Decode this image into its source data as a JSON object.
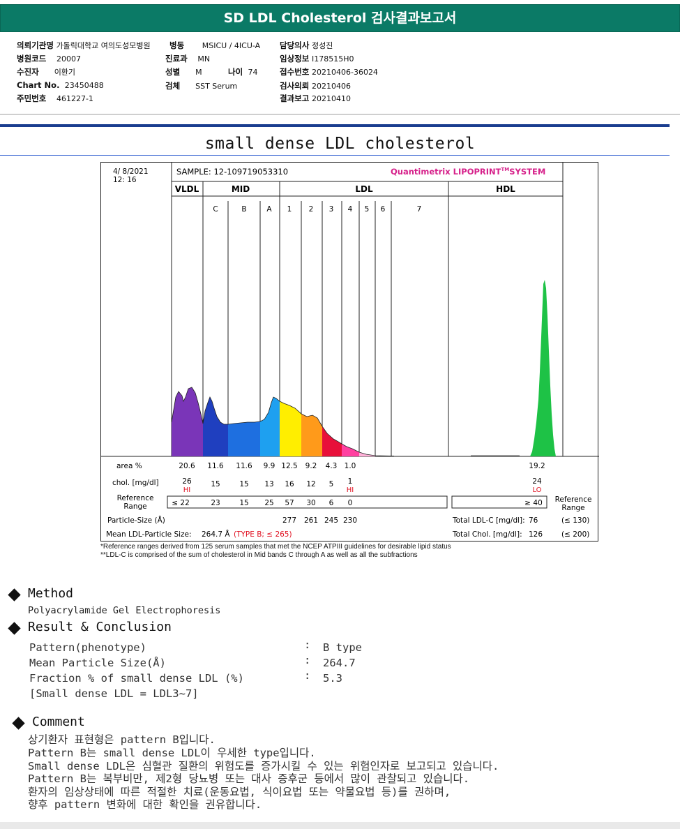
{
  "header": {
    "title": "SD LDL Cholesterol 검사결과보고서"
  },
  "info": {
    "col1": [
      {
        "label": "의뢰기관명",
        "value": "가톨릭대학교 여의도성모병원"
      },
      {
        "label": "병원코드",
        "value": "20007"
      },
      {
        "label": "수진자",
        "value": "이환기"
      },
      {
        "label": "Chart No.",
        "value": "23450488"
      },
      {
        "label": "주민번호",
        "value": "461227-1"
      }
    ],
    "col2": [
      {
        "label": "병동",
        "value": "MSICU / 4ICU-A"
      },
      {
        "label": "진료과",
        "value": "MN"
      },
      {
        "label": "성별",
        "value": "M"
      },
      {
        "label": "검체",
        "value": "SST Serum"
      }
    ],
    "age": {
      "label": "나이",
      "value": "74"
    },
    "col3": [
      {
        "label": "담당의사",
        "value": "정성진"
      },
      {
        "label": "임상정보",
        "value": "I178515H0"
      },
      {
        "label": "접수번호",
        "value": "20210406-36024"
      },
      {
        "label": "검사의뢰",
        "value": "20210406"
      },
      {
        "label": "결과보고",
        "value": "20210410"
      }
    ]
  },
  "report_title": "small dense LDL cholesterol",
  "chart": {
    "date": "4/  8/2021",
    "time": "12: 16",
    "sample": "SAMPLE:   12-109719053310",
    "brand": "Quantimetrix LIPOPRINT",
    "brand_tm": "TM",
    "brand_tail": "SYSTEM",
    "groups": [
      "VLDL",
      "MID",
      "LDL",
      "HDL"
    ],
    "subbands": [
      "C",
      "B",
      "A",
      "1",
      "2",
      "3",
      "4",
      "5",
      "6",
      "7"
    ],
    "row_labels": {
      "area": "area %",
      "chol": "chol. [mg/dl]",
      "ref1": "Reference",
      "ref2": "Range",
      "particle": "Particle-Size (Å)",
      "mean": "Mean LDL-Particle Size:",
      "mean_value": "264.7 Å",
      "mean_type": "(TYPE B; ≤ 265)",
      "ref_right1": "Reference",
      "ref_right2": "Range"
    },
    "area_values": [
      "20.6",
      "11.6",
      "11.6",
      "9.9",
      "12.5",
      "9.2",
      "4.3",
      "1.0",
      "19.2"
    ],
    "chol_values": [
      "26",
      "15",
      "15",
      "13",
      "16",
      "12",
      "5",
      "1",
      "24"
    ],
    "flags": {
      "vldl": "HI",
      "ldl4": "HI",
      "hdl": "LO"
    },
    "ref_values": [
      "≤ 22",
      "23",
      "15",
      "25",
      "57",
      "30",
      "6",
      "0"
    ],
    "ref_hdl": "≥ 40",
    "particle_values": [
      "277",
      "261",
      "245",
      "230"
    ],
    "total_ldl": {
      "label": "Total LDL-C [mg/dl]:",
      "value": "76",
      "ref": "(≤ 130)"
    },
    "total_chol": {
      "label": "Total Chol. [mg/dl]:",
      "value": "126",
      "ref": "(≤ 200)"
    }
  },
  "chart_data": {
    "type": "area",
    "title": "",
    "x": [
      "VLDL",
      "C",
      "B",
      "A",
      "LDL1",
      "LDL2",
      "LDL3",
      "LDL4",
      "LDL5",
      "LDL6",
      "LDL7",
      "HDL"
    ],
    "series": [
      {
        "name": "area %",
        "values": [
          20.6,
          11.6,
          11.6,
          9.9,
          12.5,
          9.2,
          4.3,
          1.0,
          0,
          0,
          0,
          19.2
        ]
      },
      {
        "name": "chol. [mg/dl]",
        "values": [
          26,
          15,
          15,
          13,
          16,
          12,
          5,
          1,
          0,
          0,
          0,
          24
        ]
      }
    ],
    "colors": {
      "VLDL": "#7a35b8",
      "MID": "#1f3fbf",
      "MID_B": "#1e6fe0",
      "MID_A": "#1ea0f0",
      "LDL1": "#ffee00",
      "LDL2": "#ff9a1a",
      "LDL3": "#e8103a",
      "LDL4": "#ff40a0",
      "HDL": "#1ec246"
    }
  },
  "footnotes": [
    "*Reference ranges derived from 125 serum samples that met the NCEP ATPIII guidelines for desirable lipid status",
    "**LDL-C is comprised of the sum of cholesterol in Mid bands C through A as well as all the subfractions"
  ],
  "method": {
    "heading": "Method",
    "text": "Polyacrylamide Gel Electrophoresis"
  },
  "result": {
    "heading": "Result & Conclusion",
    "rows": [
      {
        "label": "Pattern(phenotype)",
        "value": "B type"
      },
      {
        "label": "Mean Particle Size(Å)",
        "value": "264.7"
      },
      {
        "label": "Fraction % of small dense LDL (%)",
        "value": "5.3"
      }
    ],
    "note": "[Small dense LDL = LDL3~7]",
    "colon": ":"
  },
  "comment": {
    "heading": "Comment",
    "lines": [
      "상기환자 표현형은 pattern B입니다.",
      "Pattern B는 small dense LDL이 우세한 type입니다.",
      "Small dense LDL은 심혈관 질환의 위험도를 증가시킬 수 있는 위험인자로 보고되고 있습니다.",
      "Pattern B는 복부비만, 제2형 당뇨병 또는 대사 증후군 등에서 많이 관찰되고 있습니다.",
      "환자의 임상상태에 따른 적절한 치료(운동요법, 식이요법 또는 약물요법 등)를 권하며,",
      "향후 pattern 변화에 대한 확인을 권유합니다."
    ]
  }
}
